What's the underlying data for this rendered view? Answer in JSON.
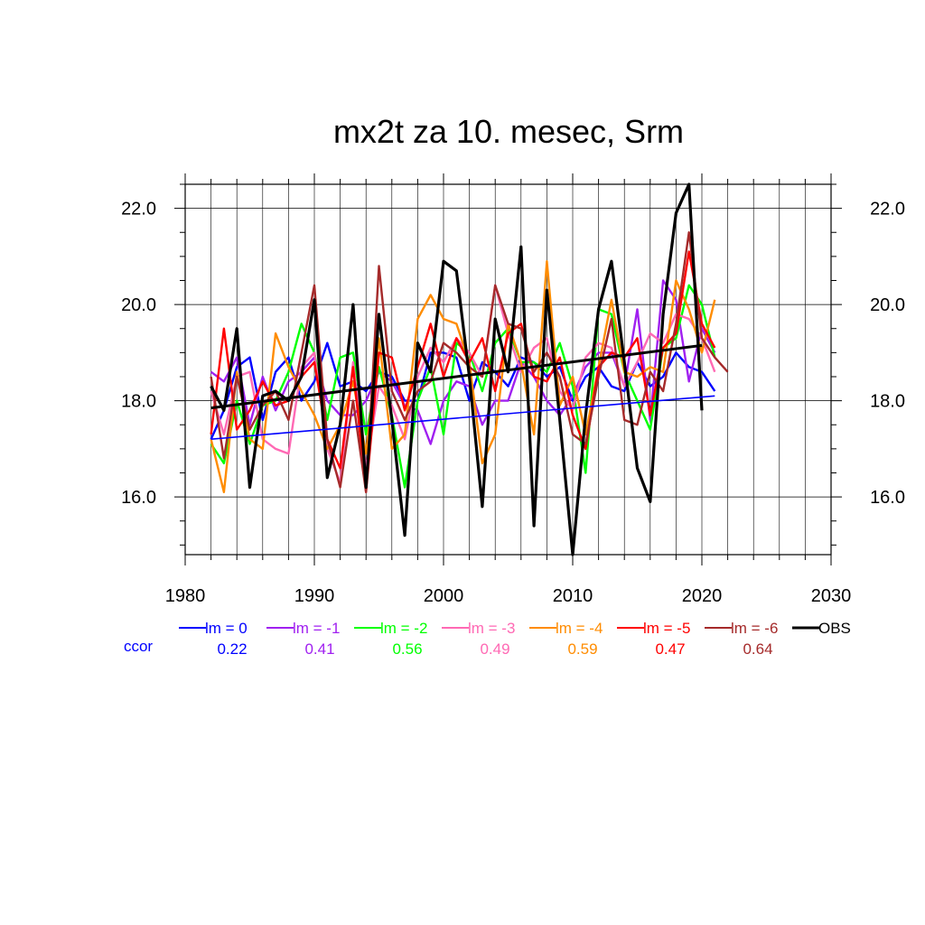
{
  "chart_data": {
    "type": "line",
    "title": "mx2t za 10. mesec, Srm",
    "xlabel": "",
    "ylabel": "",
    "xlim": [
      1980,
      2030
    ],
    "ylim": [
      14.8,
      22.5
    ],
    "x_ticks": [
      "1980",
      "1990",
      "2000",
      "2010",
      "2020",
      "2030"
    ],
    "y_ticks": [
      "16.0",
      "18.0",
      "20.0",
      "22.0"
    ],
    "y_tick_values": [
      16,
      18,
      20,
      22
    ],
    "x_tick_values": [
      1980,
      1990,
      2000,
      2010,
      2020,
      2030
    ],
    "grid": true,
    "legend_position": "bottom",
    "ccor_label": "ccor",
    "ccor_label_color": "#0000ff",
    "series": [
      {
        "name": "lm = 0",
        "color": "#0000ff",
        "ccor": "0.22",
        "start_year": 1982,
        "values": [
          17.2,
          17.8,
          18.7,
          18.9,
          17.6,
          18.6,
          18.9,
          18.0,
          18.4,
          19.2,
          18.3,
          18.4,
          18.2,
          18.6,
          18.5,
          18.0,
          18.0,
          19.0,
          19.0,
          18.9,
          18.0,
          18.8,
          18.6,
          18.3,
          18.9,
          18.8,
          18.5,
          18.7,
          18.0,
          18.5,
          18.7,
          18.3,
          18.2,
          18.8,
          18.3,
          18.5,
          19.0,
          18.7,
          18.6,
          18.2
        ],
        "trend": [
          17.2,
          18.1
        ]
      },
      {
        "name": "lm = -1",
        "color": "#a020f0",
        "ccor": "0.41",
        "start_year": 1982,
        "values": [
          18.6,
          18.4,
          18.9,
          17.5,
          18.5,
          17.8,
          18.4,
          18.6,
          18.9,
          18.0,
          17.7,
          17.7,
          18.0,
          18.6,
          18.4,
          17.9,
          17.8,
          17.1,
          18.0,
          18.4,
          18.3,
          17.5,
          18.0,
          18.0,
          18.8,
          18.5,
          18.0,
          17.7,
          18.1,
          18.7,
          19.0,
          19.0,
          18.3,
          19.9,
          17.6,
          20.5,
          20.1,
          18.4,
          19.5,
          19.0
        ],
        "trend": null
      },
      {
        "name": "lm = -2",
        "color": "#00ff00",
        "ccor": "0.56",
        "start_year": 1982,
        "values": [
          17.1,
          16.7,
          18.0,
          17.1,
          17.9,
          18.0,
          18.6,
          19.6,
          19.0,
          17.6,
          18.9,
          19.0,
          17.3,
          18.7,
          17.7,
          16.2,
          18.0,
          18.7,
          17.3,
          19.2,
          19.0,
          18.2,
          19.2,
          19.5,
          18.8,
          18.8,
          18.6,
          19.2,
          18.3,
          16.5,
          19.9,
          19.8,
          18.6,
          18.0,
          17.4,
          19.1,
          19.3,
          20.4,
          20.0,
          18.9
        ],
        "trend": null
      },
      {
        "name": "lm = -3",
        "color": "#ff69b4",
        "ccor": "0.49",
        "start_year": 1982,
        "values": [
          18.2,
          17.3,
          18.5,
          18.6,
          17.2,
          17.0,
          16.9,
          18.7,
          19.0,
          17.0,
          16.3,
          18.8,
          16.6,
          18.3,
          17.9,
          17.2,
          18.5,
          19.1,
          18.8,
          19.3,
          19.0,
          18.5,
          20.4,
          19.4,
          18.6,
          19.1,
          19.3,
          18.2,
          17.8,
          18.9,
          19.2,
          19.1,
          18.3,
          18.8,
          19.4,
          19.2,
          19.8,
          19.7,
          19.3,
          18.6
        ],
        "trend": null
      },
      {
        "name": "lm = -4",
        "color": "#ff8c00",
        "ccor": "0.59",
        "start_year": 1982,
        "values": [
          17.2,
          16.1,
          18.6,
          17.2,
          17.0,
          19.4,
          18.7,
          18.2,
          17.7,
          17.0,
          17.5,
          18.4,
          16.9,
          19.3,
          17.0,
          17.3,
          19.7,
          20.2,
          19.7,
          19.6,
          18.8,
          16.7,
          17.3,
          19.6,
          18.8,
          17.3,
          20.9,
          17.9,
          18.5,
          17.3,
          18.7,
          20.1,
          18.6,
          18.5,
          18.7,
          18.6,
          20.5,
          19.9,
          19.0,
          20.1
        ],
        "trend": null
      },
      {
        "name": "lm = -5",
        "color": "#ff0000",
        "ccor": "0.47",
        "start_year": 1982,
        "values": [
          17.3,
          19.5,
          17.4,
          17.8,
          18.4,
          17.9,
          18.0,
          18.5,
          18.8,
          17.2,
          16.6,
          18.7,
          16.1,
          19.0,
          18.9,
          17.8,
          18.7,
          19.6,
          18.5,
          19.3,
          18.8,
          19.3,
          18.2,
          19.4,
          19.6,
          18.5,
          18.4,
          18.9,
          17.7,
          17.0,
          18.7,
          19.0,
          18.9,
          19.3,
          17.7,
          19.1,
          19.4,
          21.1,
          19.6,
          19.1
        ],
        "trend": null
      },
      {
        "name": "lm = -6",
        "color": "#a52a2a",
        "ccor": "0.64",
        "start_year": 1982,
        "values": [
          18.5,
          16.8,
          18.5,
          17.4,
          17.9,
          18.2,
          17.6,
          19.0,
          20.4,
          17.2,
          16.2,
          18.0,
          16.1,
          20.8,
          18.2,
          17.6,
          18.2,
          18.4,
          19.2,
          19.0,
          18.7,
          18.5,
          20.4,
          19.6,
          19.5,
          18.6,
          19.0,
          18.5,
          17.3,
          17.1,
          18.5,
          19.7,
          17.6,
          17.5,
          18.6,
          18.2,
          19.6,
          21.5,
          19.3,
          18.9,
          18.6
        ],
        "trend": null
      },
      {
        "name": "OBS",
        "color": "#000000",
        "ccor": "",
        "start_year": 1982,
        "values": [
          18.3,
          17.8,
          19.5,
          16.2,
          18.1,
          18.2,
          18.0,
          18.5,
          20.1,
          16.4,
          17.5,
          20.0,
          16.2,
          19.8,
          17.6,
          15.2,
          19.2,
          18.6,
          20.9,
          20.7,
          18.5,
          15.8,
          19.7,
          18.6,
          21.2,
          15.4,
          20.3,
          17.6,
          14.8,
          17.7,
          19.9,
          20.9,
          18.8,
          16.6,
          15.9,
          19.8,
          21.9,
          22.5,
          17.8
        ],
        "trend": [
          17.85,
          19.15
        ]
      }
    ]
  }
}
